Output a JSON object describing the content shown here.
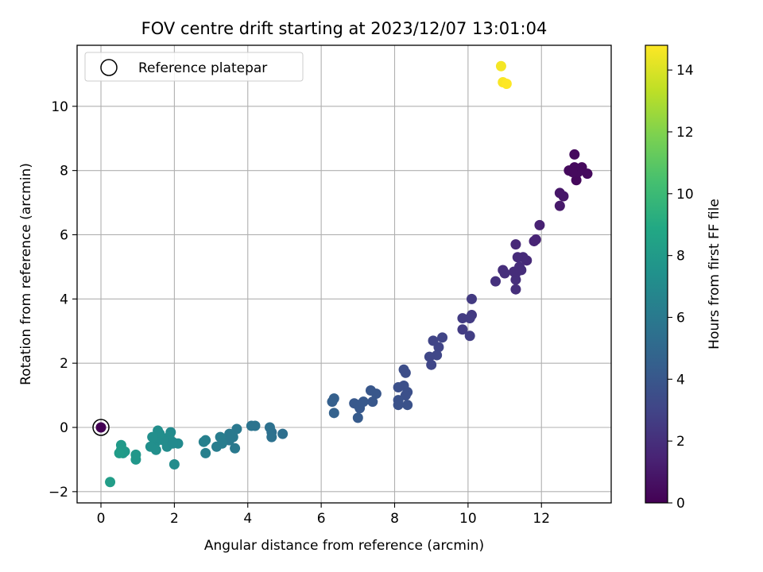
{
  "chart_data": {
    "type": "scatter",
    "title": "FOV centre drift starting at 2023/12/07 13:01:04",
    "xlabel": "Angular distance from reference (arcmin)",
    "ylabel": "Rotation from reference (arcmin)",
    "xlim": [
      -0.65,
      13.9
    ],
    "ylim": [
      -2.35,
      11.9
    ],
    "xticks": [
      "0",
      "2",
      "4",
      "6",
      "8",
      "10",
      "12"
    ],
    "yticks": [
      "−2",
      "0",
      "2",
      "4",
      "6",
      "8",
      "10"
    ],
    "grid": true,
    "legend": {
      "position": "top-left",
      "entries": [
        "Reference platepar"
      ]
    },
    "colorbar": {
      "label": "Hours from first FF file",
      "colormap": "viridis",
      "range": [
        0,
        14.8
      ],
      "ticks": [
        "0",
        "2",
        "4",
        "6",
        "8",
        "10",
        "12",
        "14"
      ]
    },
    "reference_point": {
      "x": 0,
      "y": 0
    },
    "point_fields": [
      "x",
      "y",
      "hours"
    ],
    "points": [
      [
        0,
        0,
        0
      ],
      [
        12.9,
        8.5,
        0.4
      ],
      [
        13.1,
        8.1,
        0.4
      ],
      [
        13.25,
        7.9,
        0.4
      ],
      [
        12.95,
        7.7,
        0.3
      ],
      [
        12.75,
        8.0,
        0.4
      ],
      [
        12.9,
        8.1,
        0.4
      ],
      [
        13.0,
        7.95,
        0.4
      ],
      [
        12.85,
        7.95,
        0.4
      ],
      [
        12.5,
        7.3,
        0.9
      ],
      [
        12.6,
        7.2,
        0.9
      ],
      [
        12.5,
        6.9,
        1.0
      ],
      [
        11.95,
        6.3,
        1.4
      ],
      [
        11.85,
        5.85,
        1.5
      ],
      [
        11.8,
        5.8,
        1.5
      ],
      [
        11.3,
        5.7,
        1.7
      ],
      [
        11.6,
        5.2,
        1.7
      ],
      [
        11.5,
        5.3,
        1.8
      ],
      [
        11.35,
        5.3,
        1.8
      ],
      [
        11.4,
        5.0,
        1.9
      ],
      [
        11.45,
        4.9,
        1.9
      ],
      [
        11.3,
        4.8,
        1.9
      ],
      [
        11.3,
        4.6,
        2.0
      ],
      [
        11.3,
        4.3,
        2.0
      ],
      [
        11.25,
        4.85,
        1.9
      ],
      [
        10.95,
        4.9,
        2.0
      ],
      [
        11.0,
        4.8,
        2.0
      ],
      [
        10.75,
        4.55,
        2.1
      ],
      [
        10.1,
        4.0,
        2.5
      ],
      [
        10.1,
        3.5,
        2.5
      ],
      [
        10.05,
        3.4,
        2.6
      ],
      [
        9.85,
        3.4,
        2.6
      ],
      [
        9.85,
        3.05,
        2.6
      ],
      [
        10.05,
        2.85,
        2.7
      ],
      [
        9.3,
        2.8,
        3.0
      ],
      [
        9.2,
        2.5,
        3.0
      ],
      [
        9.05,
        2.7,
        3.0
      ],
      [
        9.15,
        2.25,
        3.1
      ],
      [
        8.95,
        2.2,
        3.1
      ],
      [
        9.0,
        1.95,
        3.1
      ],
      [
        8.25,
        1.8,
        3.5
      ],
      [
        8.3,
        1.7,
        3.5
      ],
      [
        8.1,
        1.25,
        3.6
      ],
      [
        8.25,
        1.3,
        3.6
      ],
      [
        8.35,
        1.1,
        3.6
      ],
      [
        8.3,
        1.0,
        3.6
      ],
      [
        8.1,
        0.85,
        3.7
      ],
      [
        8.1,
        0.7,
        3.7
      ],
      [
        8.35,
        0.7,
        3.7
      ],
      [
        7.35,
        1.15,
        4.0
      ],
      [
        7.5,
        1.05,
        4.0
      ],
      [
        7.4,
        0.8,
        4.0
      ],
      [
        7.15,
        0.8,
        4.1
      ],
      [
        6.9,
        0.75,
        4.1
      ],
      [
        7.0,
        0.7,
        4.1
      ],
      [
        7.05,
        0.6,
        4.1
      ],
      [
        7.0,
        0.3,
        4.2
      ],
      [
        6.35,
        0.9,
        4.5
      ],
      [
        6.3,
        0.8,
        4.5
      ],
      [
        6.35,
        0.45,
        4.6
      ],
      [
        4.95,
        -0.2,
        5.4
      ],
      [
        4.65,
        -0.15,
        5.4
      ],
      [
        4.65,
        -0.3,
        5.5
      ],
      [
        4.6,
        0.0,
        5.5
      ],
      [
        4.2,
        0.05,
        5.7
      ],
      [
        4.1,
        0.05,
        5.7
      ],
      [
        3.7,
        -0.05,
        5.9
      ],
      [
        3.6,
        -0.3,
        6.0
      ],
      [
        3.5,
        -0.2,
        6.0
      ],
      [
        3.5,
        -0.4,
        6.0
      ],
      [
        3.65,
        -0.65,
        6.0
      ],
      [
        3.25,
        -0.3,
        6.2
      ],
      [
        3.3,
        -0.5,
        6.2
      ],
      [
        3.15,
        -0.6,
        6.2
      ],
      [
        2.85,
        -0.4,
        6.4
      ],
      [
        2.8,
        -0.45,
        6.4
      ],
      [
        2.85,
        -0.8,
        6.4
      ],
      [
        2.1,
        -0.5,
        7.0
      ],
      [
        1.95,
        -0.45,
        7.0
      ],
      [
        1.9,
        -0.15,
        7.0
      ],
      [
        1.85,
        -0.3,
        7.1
      ],
      [
        1.8,
        -0.6,
        7.1
      ],
      [
        1.75,
        -0.35,
        7.1
      ],
      [
        1.7,
        -0.4,
        7.1
      ],
      [
        1.6,
        -0.2,
        7.2
      ],
      [
        1.55,
        -0.1,
        7.2
      ],
      [
        1.5,
        -0.45,
        7.2
      ],
      [
        1.45,
        -0.6,
        7.2
      ],
      [
        1.4,
        -0.3,
        7.3
      ],
      [
        1.35,
        -0.6,
        7.3
      ],
      [
        1.5,
        -0.7,
        7.3
      ],
      [
        2.0,
        -1.15,
        7.1
      ],
      [
        1.95,
        -0.5,
        7.0
      ],
      [
        0.95,
        -0.85,
        7.8
      ],
      [
        0.95,
        -1.0,
        7.8
      ],
      [
        0.65,
        -0.75,
        8.0
      ],
      [
        0.6,
        -0.8,
        8.0
      ],
      [
        0.55,
        -0.55,
        8.0
      ],
      [
        0.55,
        -0.7,
        8.0
      ],
      [
        0.5,
        -0.8,
        8.1
      ],
      [
        0.25,
        -1.7,
        8.2
      ],
      [
        10.9,
        11.25,
        14.6
      ],
      [
        10.95,
        10.75,
        14.7
      ],
      [
        11.05,
        10.7,
        14.8
      ]
    ]
  }
}
